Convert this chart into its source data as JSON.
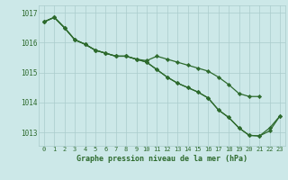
{
  "title": "Graphe pression niveau de la mer (hPa)",
  "x": [
    0,
    1,
    2,
    3,
    4,
    5,
    6,
    7,
    8,
    9,
    10,
    11,
    12,
    13,
    14,
    15,
    16,
    17,
    18,
    19,
    20,
    21,
    22,
    23
  ],
  "line1": [
    1016.7,
    1016.85,
    1016.5,
    1016.1,
    1015.95,
    1015.75,
    1015.65,
    1015.55,
    1015.55,
    1015.45,
    1015.4,
    1015.55,
    1015.45,
    1015.35,
    1015.25,
    1015.15,
    1015.05,
    1014.85,
    1014.6,
    1014.3,
    1014.2,
    1014.2,
    null,
    null
  ],
  "line2": [
    1016.7,
    1016.85,
    1016.5,
    1016.1,
    1015.95,
    1015.75,
    1015.65,
    1015.55,
    1015.55,
    1015.45,
    1015.35,
    1015.1,
    1014.85,
    1014.65,
    1014.5,
    1014.35,
    1014.15,
    1013.75,
    1013.5,
    1013.15,
    1012.9,
    1012.88,
    1013.05,
    1013.55
  ],
  "line3": [
    1016.7,
    1016.85,
    1016.5,
    1016.1,
    1015.95,
    1015.75,
    1015.65,
    1015.55,
    1015.55,
    1015.45,
    1015.35,
    1015.1,
    1014.85,
    1014.65,
    1014.5,
    1014.35,
    1014.15,
    1013.75,
    1013.5,
    1013.15,
    1012.9,
    1012.88,
    1013.15,
    1013.55
  ],
  "ylim": [
    1012.55,
    1017.25
  ],
  "yticks": [
    1013,
    1014,
    1015,
    1016,
    1017
  ],
  "line_color": "#2d6a2d",
  "bg_color": "#cce8e8",
  "grid_color": "#aacccc",
  "marker": "D",
  "marker_size": 2.2,
  "line_width": 0.9
}
